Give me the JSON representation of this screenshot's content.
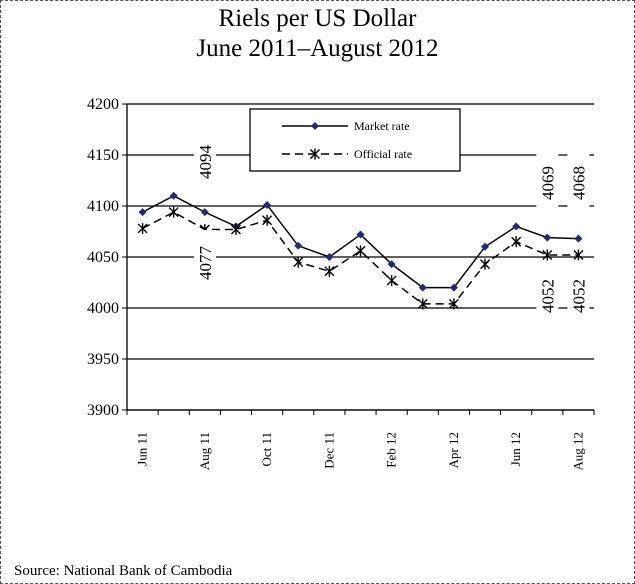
{
  "chart_data": {
    "type": "line",
    "title": "Riels per US Dollar",
    "subtitle": "June 2011–August 2012",
    "xlabel": "",
    "ylabel": "",
    "ylim": [
      3900,
      4200
    ],
    "yticks": [
      3900,
      3950,
      4000,
      4050,
      4100,
      4150,
      4200
    ],
    "grid": true,
    "legend_position": "top-center",
    "categories": [
      "Jun 11",
      "Jul 11",
      "Aug 11",
      "Sep 11",
      "Oct 11",
      "Nov 11",
      "Dec 11",
      "Jan 12",
      "Feb 12",
      "Mar 12",
      "Apr 12",
      "May 12",
      "Jun 12",
      "Jul 12",
      "Aug 12"
    ],
    "tick_labels": [
      "Jun 11",
      "",
      "Aug 11",
      "",
      "Oct 11",
      "",
      "Dec 11",
      "",
      "Feb 12",
      "",
      "Apr 12",
      "",
      "Jun 12",
      "",
      "Aug 12"
    ],
    "series": [
      {
        "name": "Market rate",
        "marker": "diamond",
        "line": "solid",
        "color": "#1f2a7a",
        "values": [
          4094,
          4110,
          4094,
          4080,
          4101,
          4061,
          4050,
          4072,
          4043,
          4020,
          4020,
          4060,
          4080,
          4069,
          4068
        ]
      },
      {
        "name": "Official rate",
        "marker": "star",
        "line": "dashed",
        "color": "#000000",
        "values": [
          4078,
          4094,
          4077,
          4077,
          4086,
          4045,
          4036,
          4056,
          4027,
          4004,
          4004,
          4043,
          4065,
          4052,
          4052
        ]
      }
    ],
    "annotations": [
      "4094",
      "4077",
      "4069",
      "4068",
      "4052",
      "4052"
    ]
  },
  "source": "Source: National Bank of Cambodia"
}
